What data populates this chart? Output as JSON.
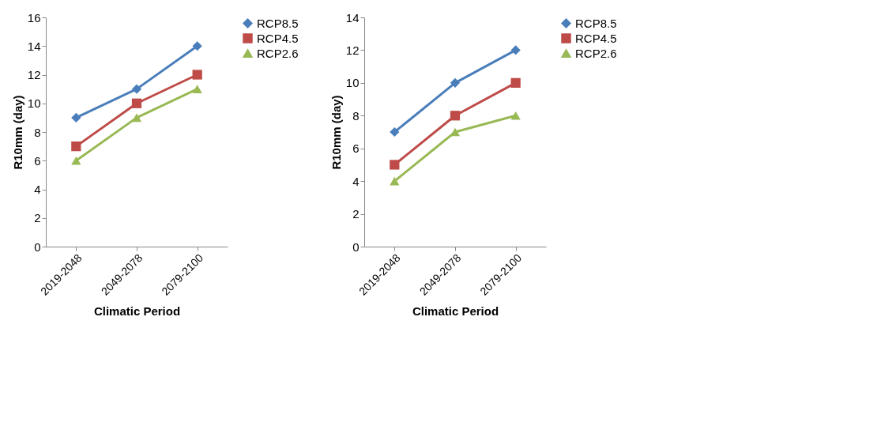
{
  "chart_data": [
    {
      "type": "line",
      "categories": [
        "2019-2048",
        "2049-2078",
        "2079-2100"
      ],
      "xlabel": "Climatic Period",
      "ylabel": "R10mm (day)",
      "ylim": [
        0,
        16
      ],
      "yticks": [
        0,
        2,
        4,
        6,
        8,
        10,
        12,
        14,
        16
      ],
      "grid": false,
      "legend": "right",
      "series": [
        {
          "name": "RCP8.5",
          "color": "#4a7ebb",
          "marker": "diamond",
          "values": [
            9,
            11,
            14
          ]
        },
        {
          "name": "RCP4.5",
          "color": "#be4b48",
          "marker": "square",
          "values": [
            7,
            10,
            12
          ]
        },
        {
          "name": "RCP2.6",
          "color": "#98b954",
          "marker": "triangle",
          "values": [
            6,
            9,
            11
          ]
        }
      ]
    },
    {
      "type": "line",
      "categories": [
        "2019-2048",
        "2049-2078",
        "2079-2100"
      ],
      "xlabel": "Climatic Period",
      "ylabel": "R10mm (day)",
      "ylim": [
        0,
        14
      ],
      "yticks": [
        0,
        2,
        4,
        6,
        8,
        10,
        12,
        14
      ],
      "grid": false,
      "legend": "right",
      "series": [
        {
          "name": "RCP8.5",
          "color": "#4a7ebb",
          "marker": "diamond",
          "values": [
            7,
            10,
            12
          ]
        },
        {
          "name": "RCP4.5",
          "color": "#be4b48",
          "marker": "square",
          "values": [
            5,
            8,
            10
          ]
        },
        {
          "name": "RCP2.6",
          "color": "#98b954",
          "marker": "triangle",
          "values": [
            4,
            7,
            8
          ]
        }
      ]
    }
  ]
}
